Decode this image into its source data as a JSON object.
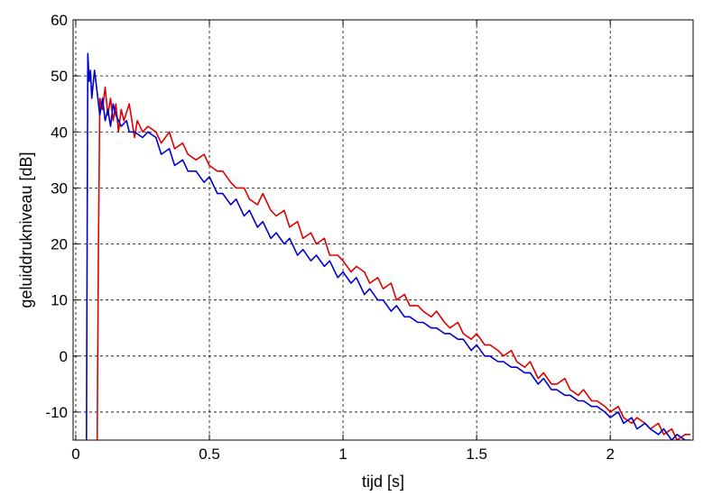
{
  "chart_data": {
    "type": "line",
    "title": "",
    "xlabel": "tijd  [s]",
    "ylabel": "geluiddrukniveau  [dB]",
    "xlim": [
      -0.01,
      2.31
    ],
    "ylim": [
      -15,
      60
    ],
    "xticks": [
      0,
      0.5,
      1,
      1.5,
      2
    ],
    "xtick_labels": [
      "0",
      "0.5",
      "1",
      "1.5",
      "2"
    ],
    "yticks": [
      -10,
      0,
      10,
      20,
      30,
      40,
      50,
      60
    ],
    "ytick_labels": [
      "-10",
      "0",
      "10",
      "20",
      "30",
      "40",
      "50",
      "60"
    ],
    "grid": true,
    "legend": "none",
    "series": [
      {
        "color": "#e00000",
        "x": [
          0.08,
          0.085,
          0.09,
          0.1,
          0.11,
          0.12,
          0.13,
          0.14,
          0.15,
          0.16,
          0.17,
          0.18,
          0.2,
          0.22,
          0.23,
          0.25,
          0.27,
          0.3,
          0.32,
          0.35,
          0.37,
          0.4,
          0.42,
          0.45,
          0.48,
          0.5,
          0.53,
          0.55,
          0.58,
          0.6,
          0.63,
          0.65,
          0.68,
          0.7,
          0.73,
          0.75,
          0.78,
          0.8,
          0.83,
          0.85,
          0.88,
          0.9,
          0.93,
          0.95,
          0.98,
          1.0,
          1.03,
          1.05,
          1.08,
          1.1,
          1.13,
          1.15,
          1.18,
          1.2,
          1.23,
          1.25,
          1.28,
          1.3,
          1.33,
          1.35,
          1.38,
          1.4,
          1.43,
          1.45,
          1.48,
          1.5,
          1.53,
          1.55,
          1.58,
          1.6,
          1.63,
          1.65,
          1.68,
          1.7,
          1.73,
          1.75,
          1.78,
          1.8,
          1.83,
          1.85,
          1.88,
          1.9,
          1.93,
          1.95,
          1.98,
          2.0,
          2.03,
          2.05,
          2.08,
          2.1,
          2.13,
          2.15,
          2.18,
          2.2,
          2.23,
          2.25,
          2.28,
          2.3
        ],
        "y": [
          -15,
          20,
          46,
          44,
          48,
          43,
          46,
          42,
          45,
          40,
          44,
          42,
          45,
          39,
          42,
          40,
          41,
          40,
          38,
          40,
          37,
          38,
          36,
          35,
          36,
          34,
          33,
          33,
          31,
          30,
          30,
          28,
          27,
          29,
          26,
          25,
          26,
          23,
          24,
          21,
          22,
          20,
          21,
          18,
          18,
          17,
          15,
          16,
          15,
          13,
          14,
          12,
          13,
          10,
          11,
          9,
          9,
          8,
          7,
          8,
          6,
          5,
          6,
          4,
          3,
          4,
          2,
          2,
          1,
          0,
          1,
          -1,
          -2,
          -1,
          -4,
          -3,
          -5,
          -5,
          -4,
          -6,
          -7,
          -6,
          -8,
          -8,
          -9,
          -10,
          -9,
          -11,
          -12,
          -11,
          -12,
          -13,
          -12,
          -14,
          -13,
          -15,
          -14,
          -14
        ]
      },
      {
        "color": "#0000d0",
        "x": [
          0.04,
          0.045,
          0.05,
          0.055,
          0.06,
          0.07,
          0.08,
          0.09,
          0.1,
          0.11,
          0.12,
          0.13,
          0.14,
          0.15,
          0.17,
          0.19,
          0.2,
          0.22,
          0.25,
          0.27,
          0.3,
          0.32,
          0.35,
          0.37,
          0.4,
          0.42,
          0.45,
          0.48,
          0.5,
          0.53,
          0.55,
          0.58,
          0.6,
          0.63,
          0.65,
          0.68,
          0.7,
          0.73,
          0.75,
          0.78,
          0.8,
          0.83,
          0.85,
          0.88,
          0.9,
          0.93,
          0.95,
          0.98,
          1.0,
          1.03,
          1.05,
          1.08,
          1.1,
          1.13,
          1.15,
          1.18,
          1.2,
          1.23,
          1.25,
          1.28,
          1.3,
          1.33,
          1.35,
          1.38,
          1.4,
          1.43,
          1.45,
          1.48,
          1.5,
          1.53,
          1.55,
          1.58,
          1.6,
          1.63,
          1.65,
          1.68,
          1.7,
          1.73,
          1.75,
          1.78,
          1.8,
          1.83,
          1.85,
          1.88,
          1.9,
          1.93,
          1.95,
          1.98,
          2.0,
          2.03,
          2.05,
          2.08,
          2.1,
          2.13,
          2.15,
          2.18,
          2.2,
          2.23,
          2.25,
          2.28,
          2.3
        ],
        "y": [
          -15,
          54,
          49,
          51,
          46,
          51,
          47,
          43,
          46,
          42,
          44,
          41,
          45,
          43,
          41,
          42,
          40,
          40,
          39,
          40,
          39,
          36,
          37,
          34,
          35,
          33,
          33,
          31,
          32,
          29,
          29,
          27,
          28,
          25,
          26,
          23,
          24,
          21,
          22,
          20,
          21,
          18,
          19,
          17,
          18,
          16,
          17,
          14,
          15,
          13,
          14,
          11,
          12,
          10,
          10,
          8,
          9,
          7,
          7,
          6,
          6,
          5,
          5,
          4,
          4,
          3,
          3,
          1,
          2,
          0,
          0,
          -1,
          -1,
          -2,
          -2,
          -3,
          -3,
          -5,
          -4,
          -6,
          -6,
          -7,
          -7,
          -8,
          -8,
          -9,
          -9,
          -10,
          -11,
          -10,
          -12,
          -11,
          -13,
          -12,
          -13,
          -14,
          -13,
          -15,
          -14,
          -15,
          -15
        ]
      }
    ]
  }
}
